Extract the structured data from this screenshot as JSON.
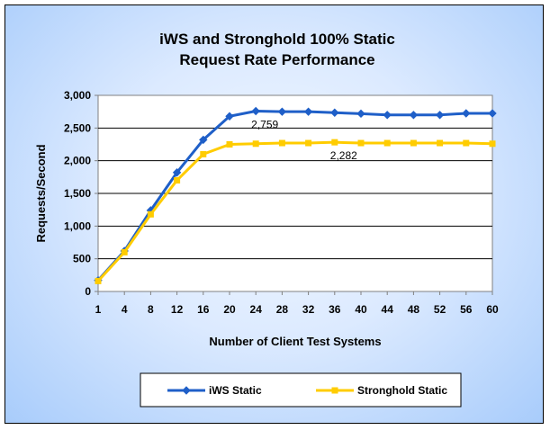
{
  "chart_data": {
    "type": "line",
    "title_lines": [
      "iWS and Stronghold 100% Static",
      "Request Rate Performance"
    ],
    "xlabel": "Number of Client Test Systems",
    "ylabel": "Requests/Second",
    "categories": [
      "1",
      "4",
      "8",
      "12",
      "16",
      "20",
      "24",
      "28",
      "32",
      "36",
      "40",
      "44",
      "48",
      "52",
      "56",
      "60"
    ],
    "y_ticks": [
      "0",
      "500",
      "1,000",
      "1,500",
      "2,000",
      "2,500",
      "3,000"
    ],
    "ylim": [
      0,
      3000
    ],
    "grid": "horizontal",
    "legend_position": "bottom",
    "series": [
      {
        "name": "iWS Static",
        "color": "#1f5fc8",
        "marker": "diamond",
        "values": [
          170,
          620,
          1240,
          1820,
          2320,
          2680,
          2759,
          2750,
          2750,
          2735,
          2720,
          2700,
          2700,
          2700,
          2725,
          2725
        ]
      },
      {
        "name": "Stronghold Static",
        "color": "#ffcc00",
        "marker": "square",
        "values": [
          160,
          600,
          1180,
          1700,
          2100,
          2250,
          2260,
          2270,
          2270,
          2282,
          2270,
          2270,
          2270,
          2270,
          2270,
          2260
        ]
      }
    ],
    "annotations": [
      {
        "text": "2,759",
        "series": 0,
        "index": 6
      },
      {
        "text": "2,282",
        "series": 1,
        "index": 9
      }
    ]
  }
}
